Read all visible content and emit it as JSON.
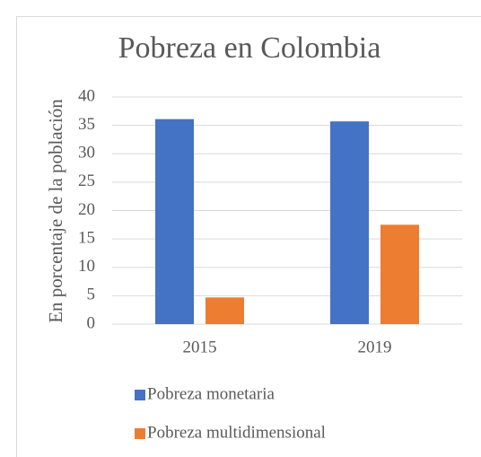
{
  "chart_data": {
    "type": "bar",
    "title": "Pobreza en Colombia",
    "y_label": "En porcentaje de la población",
    "categories": [
      "2015",
      "2019"
    ],
    "series": [
      {
        "name": "Pobreza monetaria",
        "color": "#4472c4",
        "values": [
          36.1,
          35.7
        ]
      },
      {
        "name": "Pobreza multidimensional",
        "color": "#ed7d31",
        "values": [
          4.7,
          17.5
        ]
      }
    ],
    "ylim": [
      0,
      40
    ],
    "yticks": [
      0,
      5,
      10,
      15,
      20,
      25,
      30,
      35,
      40
    ],
    "grid": true,
    "legend": "bottom"
  }
}
